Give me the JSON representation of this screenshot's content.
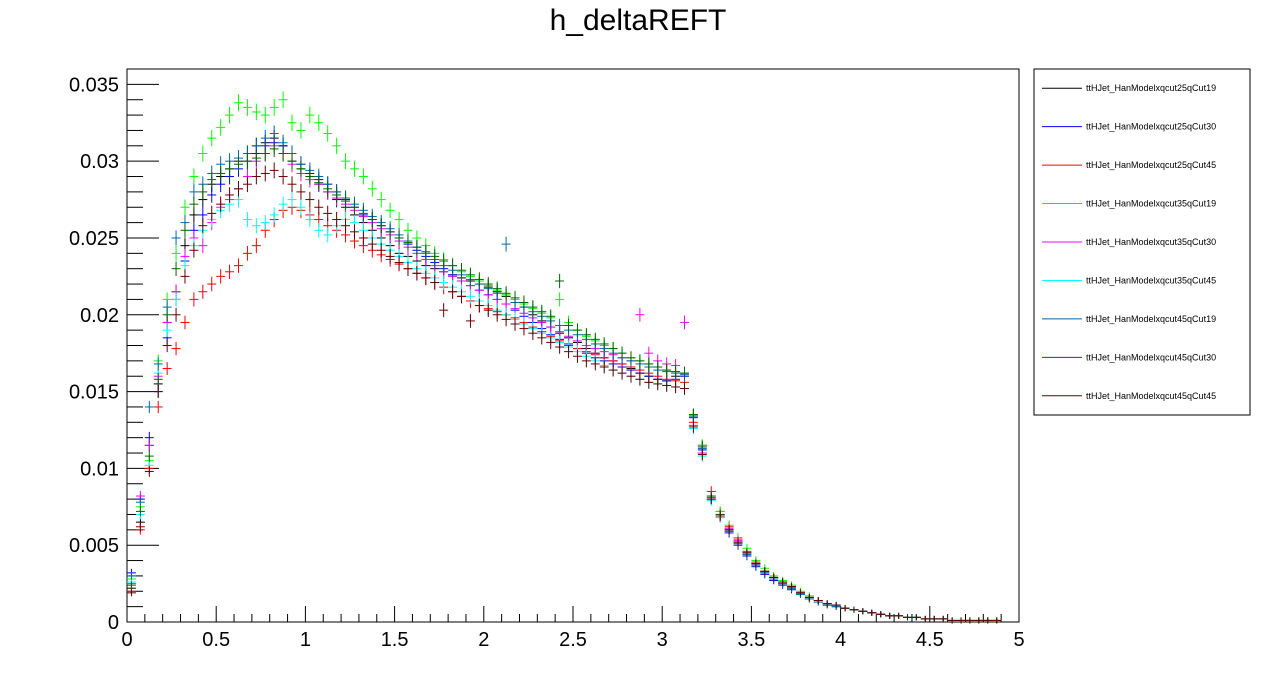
{
  "chart_data": {
    "type": "scatter",
    "title": "h_deltaREFT",
    "xlabel": "",
    "ylabel": "",
    "xlim": [
      0,
      5
    ],
    "ylim": [
      0,
      0.036
    ],
    "xticks": [
      0,
      0.5,
      1,
      1.5,
      2,
      2.5,
      3,
      3.5,
      4,
      4.5,
      5
    ],
    "xtick_labels": [
      "0",
      "0.5",
      "1",
      "1.5",
      "2",
      "2.5",
      "3",
      "3.5",
      "4",
      "4.5",
      "5"
    ],
    "yticks": [
      0,
      0.005,
      0.01,
      0.015,
      0.02,
      0.025,
      0.03,
      0.035
    ],
    "ytick_labels": [
      "0",
      "0.005",
      "0.01",
      "0.015",
      "0.02",
      "0.025",
      "0.03",
      "0.035"
    ],
    "grid": false,
    "legend_position": "right",
    "bin_width": 0.05,
    "x": [
      0.025,
      0.075,
      0.125,
      0.175,
      0.225,
      0.275,
      0.325,
      0.375,
      0.425,
      0.475,
      0.525,
      0.575,
      0.625,
      0.675,
      0.725,
      0.775,
      0.825,
      0.875,
      0.925,
      0.975,
      1.025,
      1.075,
      1.125,
      1.175,
      1.225,
      1.275,
      1.325,
      1.375,
      1.425,
      1.475,
      1.525,
      1.575,
      1.625,
      1.675,
      1.725,
      1.775,
      1.825,
      1.875,
      1.925,
      1.975,
      2.025,
      2.075,
      2.125,
      2.175,
      2.225,
      2.275,
      2.325,
      2.375,
      2.425,
      2.475,
      2.525,
      2.575,
      2.625,
      2.675,
      2.725,
      2.775,
      2.825,
      2.875,
      2.925,
      2.975,
      3.025,
      3.075,
      3.125,
      3.175,
      3.225,
      3.275,
      3.325,
      3.375,
      3.425,
      3.475,
      3.525,
      3.575,
      3.625,
      3.675,
      3.725,
      3.775,
      3.825,
      3.875,
      3.925,
      3.975,
      4.025,
      4.075,
      4.125,
      4.175,
      4.225,
      4.275,
      4.325,
      4.375,
      4.425,
      4.475,
      4.525,
      4.575,
      4.625,
      4.675,
      4.725,
      4.775,
      4.825,
      4.875,
      4.925,
      4.975
    ],
    "series": [
      {
        "name": "ttHJet_HanModelxqcut25qCut19",
        "color": "#000000",
        "values": [
          0.0022,
          0.0065,
          0.0115,
          0.0155,
          0.0195,
          0.0215,
          0.0245,
          0.0265,
          0.0275,
          0.0285,
          0.029,
          0.0295,
          0.03,
          0.0305,
          0.031,
          0.0312,
          0.0315,
          0.031,
          0.03,
          0.0295,
          0.029,
          0.0285,
          0.028,
          0.0275,
          0.027,
          0.0265,
          0.026,
          0.0255,
          0.025,
          0.0245,
          0.024,
          0.0238,
          0.0235,
          0.0232,
          0.023,
          0.0228,
          0.0226,
          0.0224,
          0.0222,
          0.022,
          0.0218,
          0.0215,
          0.0212,
          0.0208,
          0.0205,
          0.02,
          0.0196,
          0.0192,
          0.0188,
          0.0185,
          0.0182,
          0.0178,
          0.0175,
          0.0172,
          0.017,
          0.0168,
          0.0165,
          0.0162,
          0.016,
          0.0158,
          0.0157,
          0.016,
          0.0162,
          0.0135,
          0.0115,
          0.0082,
          0.007,
          0.006,
          0.0052,
          0.0045,
          0.0038,
          0.0032,
          0.0028,
          0.0025,
          0.0022,
          0.0018,
          0.0015,
          0.0013,
          0.0011,
          0.001,
          0.0009,
          0.0008,
          0.0007,
          0.0006,
          0.0005,
          0.0004,
          0.0004,
          0.0003,
          0.0003,
          0.0002,
          0.0002,
          0.0002,
          0.0001,
          0.0001,
          0.0001,
          0.0001,
          0.0001,
          0.0001,
          0.0,
          0.0
        ]
      },
      {
        "name": "ttHJet_HanModelxqcut25qCut30",
        "color": "#0000ff",
        "values": [
          0.0032,
          0.008,
          0.012,
          0.015,
          0.0185,
          0.021,
          0.0235,
          0.0255,
          0.0265,
          0.0278,
          0.0285,
          0.029,
          0.0295,
          0.03,
          0.0305,
          0.031,
          0.0312,
          0.031,
          0.0305,
          0.0298,
          0.0292,
          0.0288,
          0.0285,
          0.028,
          0.0275,
          0.027,
          0.0265,
          0.0262,
          0.0258,
          0.0254,
          0.025,
          0.0246,
          0.0242,
          0.0238,
          0.0234,
          0.023,
          0.0226,
          0.0222,
          0.0219,
          0.0216,
          0.0213,
          0.021,
          0.0207,
          0.0203,
          0.0199,
          0.0195,
          0.0191,
          0.0187,
          0.0184,
          0.0181,
          0.0178,
          0.0175,
          0.0172,
          0.017,
          0.0168,
          0.0166,
          0.0164,
          0.0162,
          0.016,
          0.0158,
          0.0157,
          0.0158,
          0.016,
          0.0133,
          0.0112,
          0.008,
          0.0068,
          0.0058,
          0.005,
          0.0043,
          0.0036,
          0.0031,
          0.0027,
          0.0024,
          0.0021,
          0.0018,
          0.0015,
          0.0013,
          0.0011,
          0.001,
          0.0009,
          0.0008,
          0.0007,
          0.0006,
          0.0005,
          0.0004,
          0.0004,
          0.0003,
          0.0003,
          0.0002,
          0.0002,
          0.0002,
          0.0001,
          0.0001,
          0.0001,
          0.0001,
          0.0001,
          0.0001,
          0.0,
          0.0
        ]
      },
      {
        "name": "ttHJet_HanModelxqcut25qCut45",
        "color": "#ff0000",
        "values": [
          0.002,
          0.006,
          0.01,
          0.014,
          0.0165,
          0.0178,
          0.0195,
          0.021,
          0.0215,
          0.022,
          0.0225,
          0.0228,
          0.0232,
          0.024,
          0.0245,
          0.0255,
          0.0262,
          0.0268,
          0.027,
          0.0268,
          0.0265,
          0.0262,
          0.0258,
          0.0255,
          0.0252,
          0.0248,
          0.0245,
          0.0242,
          0.0239,
          0.0236,
          0.0233,
          0.023,
          0.0227,
          0.0224,
          0.0221,
          0.0218,
          0.0215,
          0.0212,
          0.0209,
          0.0206,
          0.0204,
          0.0202,
          0.02,
          0.0198,
          0.0195,
          0.0192,
          0.0189,
          0.0186,
          0.0183,
          0.018,
          0.0178,
          0.0176,
          0.0174,
          0.0172,
          0.017,
          0.0168,
          0.0166,
          0.0164,
          0.0162,
          0.016,
          0.0158,
          0.0157,
          0.0156,
          0.013,
          0.011,
          0.0085,
          0.0072,
          0.0062,
          0.0054,
          0.0046,
          0.0039,
          0.0033,
          0.0029,
          0.0026,
          0.0023,
          0.0019,
          0.0016,
          0.0014,
          0.0012,
          0.0011,
          0.0009,
          0.0008,
          0.0007,
          0.0006,
          0.0005,
          0.0004,
          0.0004,
          0.0003,
          0.0003,
          0.0002,
          0.0002,
          0.0002,
          0.0001,
          0.0001,
          0.0001,
          0.0001,
          0.0001,
          0.0001,
          0.0,
          0.0
        ]
      },
      {
        "name": "ttHJet_HanModelxqcut35qCut19",
        "color": "#00ff00",
        "values": [
          0.0028,
          0.0075,
          0.0105,
          0.017,
          0.021,
          0.024,
          0.027,
          0.029,
          0.0305,
          0.0315,
          0.0322,
          0.033,
          0.0338,
          0.0335,
          0.0332,
          0.033,
          0.0335,
          0.034,
          0.0325,
          0.032,
          0.033,
          0.0325,
          0.0318,
          0.031,
          0.03,
          0.0295,
          0.029,
          0.0282,
          0.0275,
          0.0268,
          0.0262,
          0.0255,
          0.025,
          0.0245,
          0.024,
          0.0236,
          0.0232,
          0.0228,
          0.0225,
          0.0222,
          0.0219,
          0.0216,
          0.0213,
          0.021,
          0.0207,
          0.0204,
          0.0201,
          0.0198,
          0.021,
          0.0195,
          0.019,
          0.0186,
          0.0183,
          0.018,
          0.0178,
          0.0175,
          0.0172,
          0.017,
          0.0168,
          0.0166,
          0.0164,
          0.0163,
          0.0162,
          0.0135,
          0.0115,
          0.0082,
          0.0072,
          0.0063,
          0.0055,
          0.0048,
          0.004,
          0.0035,
          0.003,
          0.0027,
          0.0024,
          0.002,
          0.0017,
          0.0014,
          0.0012,
          0.0011,
          0.0009,
          0.0008,
          0.0007,
          0.0006,
          0.0005,
          0.0004,
          0.0004,
          0.0003,
          0.0003,
          0.0002,
          0.0002,
          0.0002,
          0.0001,
          0.0001,
          0.0001,
          0.0001,
          0.0001,
          0.0001,
          0.0,
          0.0
        ]
      },
      {
        "name": "ttHJet_HanModelxqcut35qCut30",
        "color": "#ff00ff",
        "values": [
          0.0025,
          0.0082,
          0.0115,
          0.016,
          0.0195,
          0.0215,
          0.0238,
          0.025,
          0.0245,
          0.026,
          0.027,
          0.0275,
          0.0282,
          0.029,
          0.03,
          0.0305,
          0.031,
          0.0305,
          0.0298,
          0.0292,
          0.0288,
          0.0285,
          0.028,
          0.0276,
          0.0272,
          0.0268,
          0.0264,
          0.026,
          0.0256,
          0.0252,
          0.0248,
          0.0244,
          0.024,
          0.0236,
          0.0232,
          0.0228,
          0.0225,
          0.0222,
          0.0219,
          0.0216,
          0.0213,
          0.021,
          0.0207,
          0.0204,
          0.0201,
          0.0198,
          0.0195,
          0.0192,
          0.0189,
          0.0186,
          0.0183,
          0.018,
          0.0178,
          0.0176,
          0.0174,
          0.0172,
          0.017,
          0.02,
          0.0175,
          0.017,
          0.0168,
          0.0167,
          0.0195,
          0.0128,
          0.011,
          0.008,
          0.007,
          0.0061,
          0.0053,
          0.0045,
          0.0038,
          0.0033,
          0.0029,
          0.0026,
          0.0023,
          0.0019,
          0.0016,
          0.0014,
          0.0012,
          0.0011,
          0.0009,
          0.0008,
          0.0007,
          0.0006,
          0.0005,
          0.0004,
          0.0004,
          0.0003,
          0.0003,
          0.0002,
          0.0002,
          0.0002,
          0.0001,
          0.0001,
          0.0001,
          0.0001,
          0.0001,
          0.0001,
          0.0,
          0.0
        ]
      },
      {
        "name": "ttHJet_HanModelxqcut35qCut45",
        "color": "#00ffff",
        "values": [
          0.0026,
          0.007,
          0.0102,
          0.0162,
          0.019,
          0.021,
          0.0232,
          0.0245,
          0.0255,
          0.0262,
          0.0268,
          0.0272,
          0.0275,
          0.0262,
          0.0258,
          0.026,
          0.0265,
          0.0272,
          0.0275,
          0.027,
          0.0262,
          0.0255,
          0.0252,
          0.0258,
          0.0262,
          0.026,
          0.0255,
          0.025,
          0.0246,
          0.0242,
          0.0238,
          0.0234,
          0.023,
          0.0227,
          0.0224,
          0.0221,
          0.0218,
          0.0215,
          0.0212,
          0.0209,
          0.0206,
          0.0203,
          0.02,
          0.0197,
          0.0194,
          0.0191,
          0.0188,
          0.0185,
          0.0182,
          0.0179,
          0.0176,
          0.0173,
          0.017,
          0.0167,
          0.0164,
          0.0162,
          0.016,
          0.0158,
          0.0156,
          0.0155,
          0.0154,
          0.0153,
          0.0152,
          0.0126,
          0.0108,
          0.0079,
          0.0068,
          0.0059,
          0.0051,
          0.0044,
          0.0037,
          0.0032,
          0.0028,
          0.0025,
          0.0022,
          0.0018,
          0.0015,
          0.0013,
          0.0011,
          0.001,
          0.0009,
          0.0008,
          0.0007,
          0.0006,
          0.0005,
          0.0004,
          0.0004,
          0.0003,
          0.0003,
          0.0002,
          0.0002,
          0.0002,
          0.0001,
          0.0001,
          0.0001,
          0.0001,
          0.0001,
          0.0001,
          0.0,
          0.0
        ]
      },
      {
        "name": "ttHJet_HanModelxqcut45qCut19",
        "color": "#0066aa",
        "values": [
          0.003,
          0.0078,
          0.014,
          0.0168,
          0.0205,
          0.025,
          0.026,
          0.028,
          0.0285,
          0.0292,
          0.0298,
          0.03,
          0.0302,
          0.0305,
          0.031,
          0.0315,
          0.0318,
          0.0312,
          0.0305,
          0.0298,
          0.0294,
          0.029,
          0.0285,
          0.028,
          0.0276,
          0.0272,
          0.0268,
          0.0264,
          0.026,
          0.0256,
          0.0252,
          0.0248,
          0.0244,
          0.024,
          0.0236,
          0.0232,
          0.0229,
          0.0226,
          0.0223,
          0.022,
          0.0217,
          0.0214,
          0.0246,
          0.0208,
          0.0205,
          0.0202,
          0.0199,
          0.0196,
          0.0193,
          0.019,
          0.0187,
          0.0184,
          0.0181,
          0.0178,
          0.0175,
          0.0172,
          0.017,
          0.0168,
          0.0166,
          0.0164,
          0.0163,
          0.0162,
          0.0161,
          0.0134,
          0.0113,
          0.0081,
          0.0069,
          0.0059,
          0.0051,
          0.0044,
          0.0037,
          0.0032,
          0.0028,
          0.0025,
          0.0022,
          0.0018,
          0.0015,
          0.0013,
          0.0011,
          0.001,
          0.0009,
          0.0008,
          0.0007,
          0.0006,
          0.0005,
          0.0004,
          0.0004,
          0.0003,
          0.0003,
          0.0002,
          0.0002,
          0.0002,
          0.0001,
          0.0001,
          0.0001,
          0.0001,
          0.0001,
          0.0001,
          0.0,
          0.0
        ]
      },
      {
        "name": "ttHJet_HanModelxqcut45qCut30",
        "color": "#006600",
        "values": [
          0.0024,
          0.0072,
          0.0108,
          0.0158,
          0.02,
          0.023,
          0.0255,
          0.0272,
          0.028,
          0.0288,
          0.0292,
          0.0295,
          0.0298,
          0.03,
          0.0302,
          0.0305,
          0.0308,
          0.0305,
          0.03,
          0.0295,
          0.029,
          0.0286,
          0.0282,
          0.0278,
          0.0274,
          0.027,
          0.0266,
          0.0262,
          0.0258,
          0.0254,
          0.025,
          0.0247,
          0.0244,
          0.0241,
          0.0238,
          0.0235,
          0.0232,
          0.0229,
          0.0226,
          0.0223,
          0.022,
          0.0217,
          0.0214,
          0.0211,
          0.0208,
          0.0205,
          0.0202,
          0.0199,
          0.0222,
          0.0193,
          0.019,
          0.0187,
          0.0184,
          0.0181,
          0.0178,
          0.0175,
          0.0172,
          0.017,
          0.0168,
          0.0166,
          0.0164,
          0.0163,
          0.0162,
          0.0135,
          0.0114,
          0.0082,
          0.007,
          0.006,
          0.0052,
          0.0045,
          0.0038,
          0.0033,
          0.0029,
          0.0026,
          0.0023,
          0.0019,
          0.0016,
          0.0014,
          0.0012,
          0.0011,
          0.0009,
          0.0008,
          0.0007,
          0.0006,
          0.0005,
          0.0004,
          0.0004,
          0.0003,
          0.0003,
          0.0002,
          0.0002,
          0.0002,
          0.0001,
          0.0001,
          0.0001,
          0.0001,
          0.0001,
          0.0001,
          0.0,
          0.0
        ]
      },
      {
        "name": "ttHJet_HanModelxqcut45qCut45",
        "color": "#660000",
        "values": [
          0.0019,
          0.0062,
          0.0098,
          0.015,
          0.018,
          0.02,
          0.0225,
          0.0242,
          0.0258,
          0.0266,
          0.0272,
          0.0278,
          0.0282,
          0.0285,
          0.029,
          0.0292,
          0.0294,
          0.029,
          0.0285,
          0.028,
          0.0275,
          0.027,
          0.0266,
          0.0262,
          0.0258,
          0.0254,
          0.025,
          0.0246,
          0.0242,
          0.0238,
          0.0234,
          0.023,
          0.0227,
          0.0224,
          0.0221,
          0.0203,
          0.0215,
          0.0212,
          0.0196,
          0.0206,
          0.0203,
          0.02,
          0.0197,
          0.0194,
          0.0191,
          0.0188,
          0.0185,
          0.0182,
          0.0179,
          0.0176,
          0.0173,
          0.017,
          0.0168,
          0.0166,
          0.0164,
          0.0162,
          0.016,
          0.0158,
          0.0156,
          0.0155,
          0.0154,
          0.0153,
          0.0152,
          0.0127,
          0.0109,
          0.008,
          0.0069,
          0.006,
          0.0052,
          0.0045,
          0.0038,
          0.0033,
          0.0029,
          0.0026,
          0.0023,
          0.0019,
          0.0016,
          0.0014,
          0.0012,
          0.0011,
          0.0009,
          0.0008,
          0.0007,
          0.0006,
          0.0005,
          0.0004,
          0.0004,
          0.0003,
          0.0003,
          0.0002,
          0.0002,
          0.0002,
          0.0001,
          0.0001,
          0.0001,
          0.0001,
          0.0001,
          0.0001,
          0.0,
          0.0
        ]
      }
    ]
  }
}
